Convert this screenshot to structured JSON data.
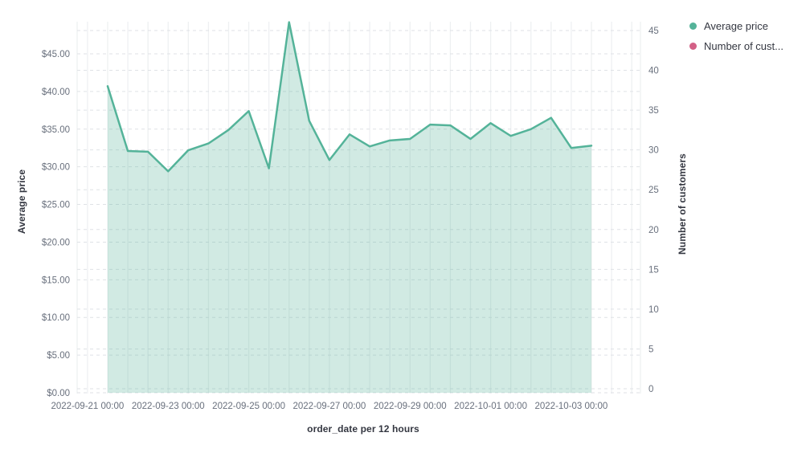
{
  "legend": {
    "position": "top-right",
    "items": [
      {
        "label": "Average price",
        "color": "#54B399"
      },
      {
        "label": "Number of cust...",
        "color": "#D36086"
      }
    ]
  },
  "chart_data": {
    "type": "area",
    "title": "",
    "grid": true,
    "legend_position": "right",
    "x_axis": {
      "title": "order_date per 12 hours",
      "tick_labels": [
        "2022-09-21 00:00",
        "2022-09-23 00:00",
        "2022-09-25 00:00",
        "2022-09-27 00:00",
        "2022-09-29 00:00",
        "2022-10-01 00:00",
        "2022-10-03 00:00"
      ]
    },
    "y_axis_left": {
      "title": "Average price",
      "tick_labels": [
        "$0.00",
        "$5.00",
        "$10.00",
        "$15.00",
        "$20.00",
        "$25.00",
        "$30.00",
        "$35.00",
        "$40.00",
        "$45.00"
      ],
      "tick_values": [
        0,
        5,
        10,
        15,
        20,
        25,
        30,
        35,
        40,
        45
      ],
      "range": [
        0,
        49.2
      ]
    },
    "y_axis_right": {
      "title": "Number of customers",
      "tick_labels": [
        "0",
        "5",
        "10",
        "15",
        "20",
        "25",
        "30",
        "35",
        "40",
        "45"
      ],
      "tick_values": [
        0,
        5,
        10,
        15,
        20,
        25,
        30,
        35,
        40,
        45
      ],
      "range": [
        0,
        46
      ]
    },
    "series": [
      {
        "name": "Average price",
        "type": "area",
        "axis": "left",
        "color": "#54B399",
        "fill": "rgba(84,179,153,0.27)",
        "x": [
          "2022-09-21 12:00",
          "2022-09-22 00:00",
          "2022-09-22 12:00",
          "2022-09-23 00:00",
          "2022-09-23 12:00",
          "2022-09-24 00:00",
          "2022-09-24 12:00",
          "2022-09-25 00:00",
          "2022-09-25 12:00",
          "2022-09-26 00:00",
          "2022-09-26 12:00",
          "2022-09-27 00:00",
          "2022-09-27 12:00",
          "2022-09-28 00:00",
          "2022-09-28 12:00",
          "2022-09-29 00:00",
          "2022-09-29 12:00",
          "2022-09-30 00:00",
          "2022-09-30 12:00",
          "2022-10-01 00:00",
          "2022-10-01 12:00",
          "2022-10-02 00:00",
          "2022-10-02 12:00",
          "2022-10-03 00:00",
          "2022-10-03 12:00"
        ],
        "values": [
          40.7,
          32.1,
          32.0,
          29.4,
          32.2,
          33.1,
          34.9,
          37.4,
          29.8,
          49.2,
          36.1,
          30.9,
          34.3,
          32.7,
          33.5,
          33.7,
          35.6,
          35.5,
          33.7,
          35.8,
          34.1,
          35.0,
          36.5,
          32.5,
          32.8
        ]
      },
      {
        "name": "Number of customers",
        "type": "line",
        "axis": "right",
        "color": "#D36086",
        "x": [],
        "values": []
      }
    ],
    "style": {
      "vertical_gridline_color": "#eef0f2",
      "horizontal_gridline_color": "#dfe2e6",
      "tick_label_color": "#69707D",
      "axis_title_color": "#343741",
      "background": "#ffffff"
    }
  }
}
